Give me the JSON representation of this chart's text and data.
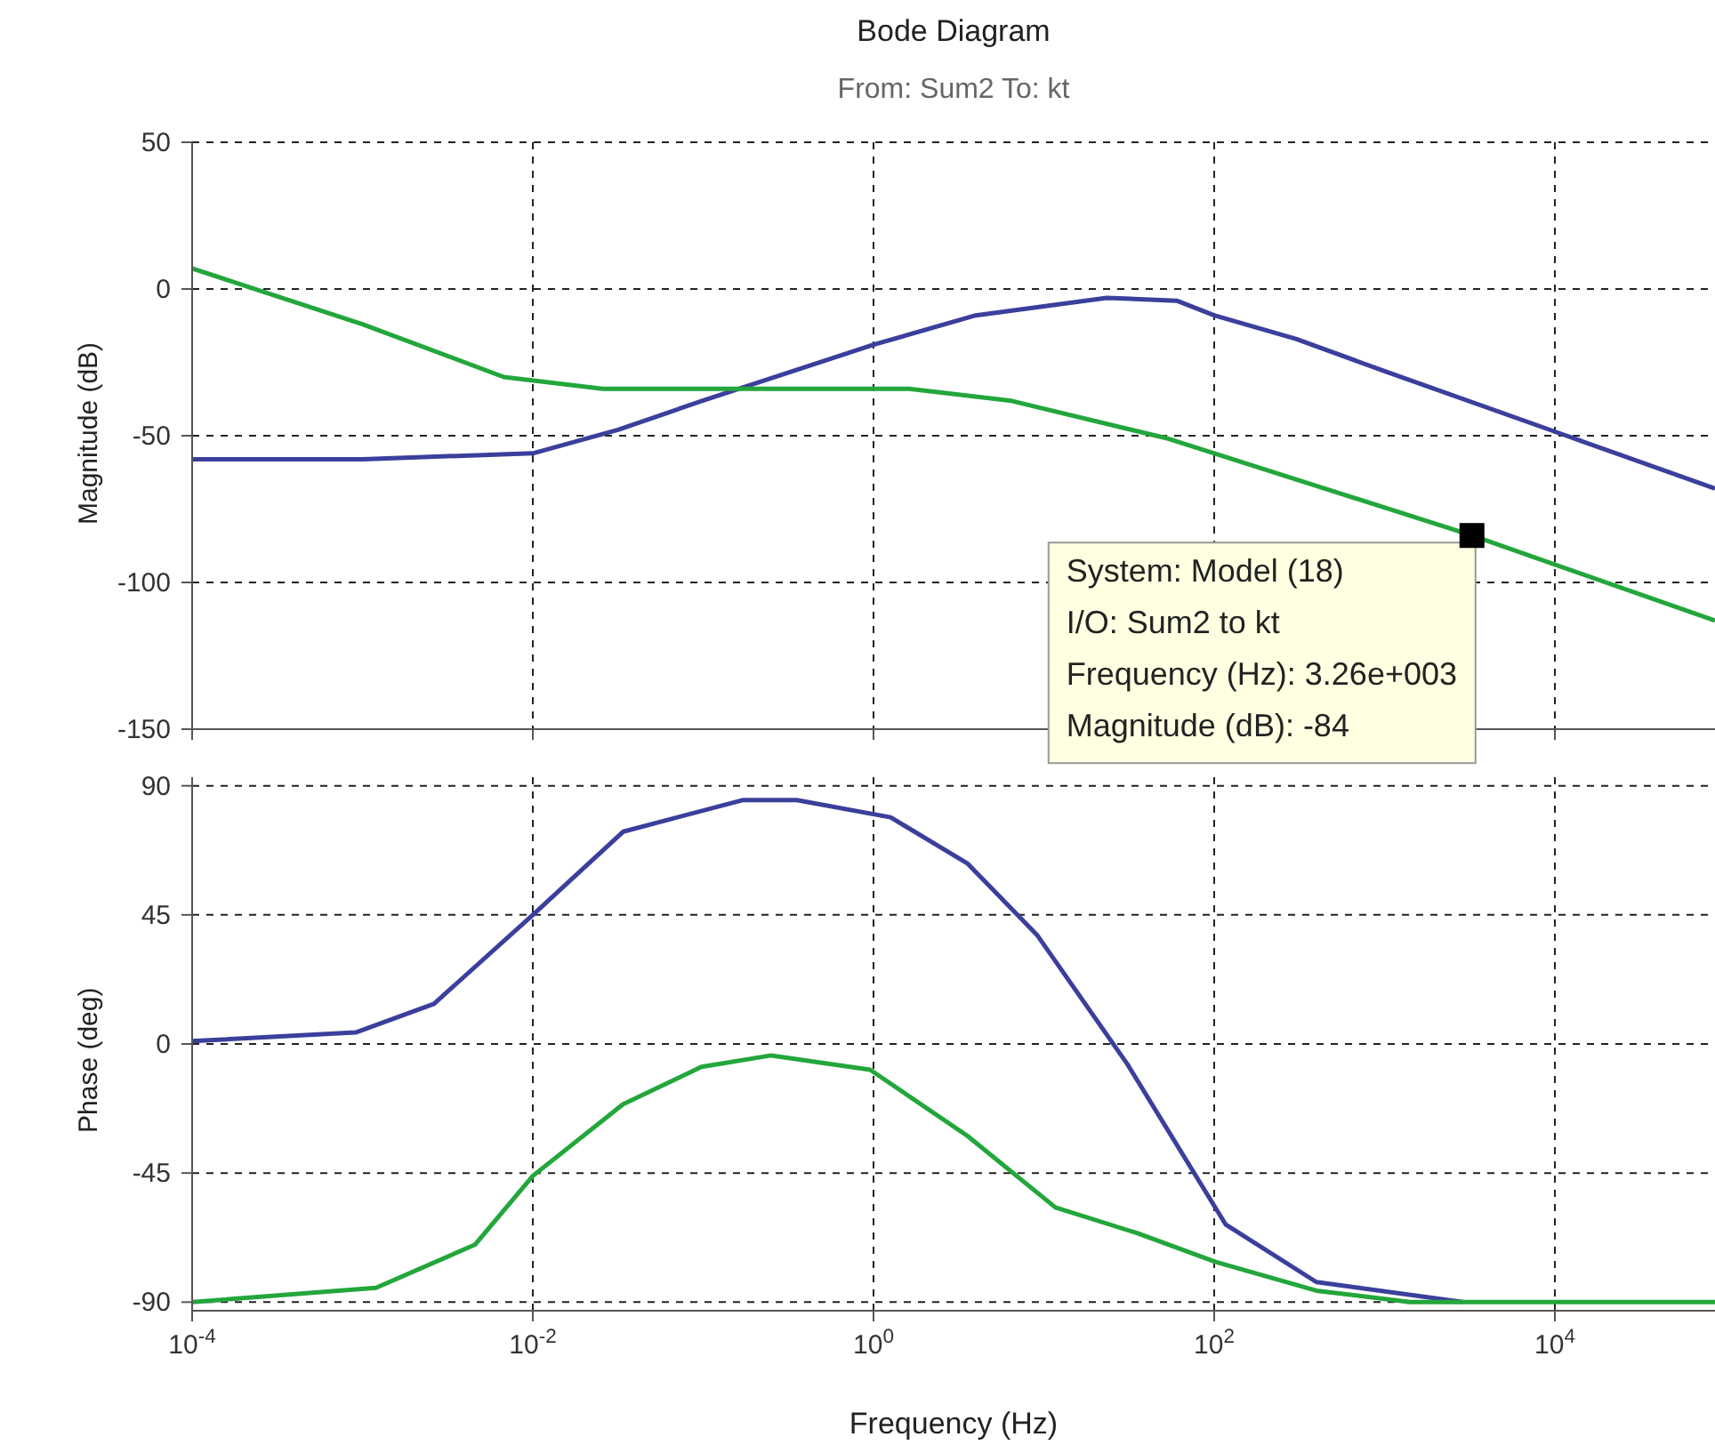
{
  "chart_data": [
    {
      "type": "line",
      "title": "Bode Diagram",
      "subtitle": "From: Sum2  To: kt",
      "ylabel": "Magnitude (dB)",
      "log": "x",
      "grid": true,
      "marker": "none",
      "line_style": "solid",
      "tick_labels": "y",
      "xlim": [
        0.0001,
        87100
      ],
      "xticks": [
        {
          "value": 0.0001,
          "label": null
        },
        {
          "value": 0.01,
          "label": null
        },
        {
          "value": 1,
          "label": null
        },
        {
          "value": 100,
          "label": null
        },
        {
          "value": 10000,
          "label": null
        }
      ],
      "ylim": [
        -150,
        50
      ],
      "yticks": [
        -150,
        -100,
        -50,
        0,
        50
      ],
      "annotations": [
        {
          "text": "System: Model (18)\nI/O: Sum2 to kt\nFrequency (Hz): 3.26e+003\nMagnitude (dB): -84",
          "x": 3260,
          "y": -84
        }
      ],
      "series": [
        {
          "color": "#3b3f9c",
          "x": [
            0.0001,
            0.001,
            0.01,
            0.0316,
            0.1,
            1,
            3.98,
            23.4,
            60.3,
            100,
            302,
            1000,
            11700,
            87100
          ],
          "values": [
            -58,
            -58,
            -56,
            -48,
            -38,
            -19,
            -9,
            -3,
            -4,
            -9,
            -17,
            -28,
            -50,
            -68
          ]
        },
        {
          "color": "#23a63b",
          "x": [
            0.0001,
            0.001,
            0.00676,
            0.0257,
            1.62,
            6.31,
            53.7,
            3260,
            87100
          ],
          "values": [
            7,
            -12,
            -30,
            -34,
            -34,
            -38,
            -51,
            -84,
            -113
          ]
        }
      ]
    },
    {
      "type": "line",
      "xlabel": "Frequency  (Hz)",
      "ylabel": "Phase (deg)",
      "log": "x",
      "grid": true,
      "marker": "none",
      "line_style": "solid",
      "xlim": [
        0.0001,
        87100
      ],
      "xticks": [
        {
          "value": 0.0001,
          "label": "10$^{-4}$"
        },
        {
          "value": 0.01,
          "label": "10$^{-2}$"
        },
        {
          "value": 1,
          "label": "10$^{0}$"
        },
        {
          "value": 100,
          "label": "10$^{2}$"
        },
        {
          "value": 10000,
          "label": "10$^{4}$"
        }
      ],
      "ylim": [
        -93,
        93
      ],
      "yticks": [
        -90,
        -45,
        0,
        45,
        90
      ],
      "series": [
        {
          "color": "#3b3f9c",
          "x": [
            0.0001,
            0.000912,
            0.00263,
            0.01,
            0.0339,
            0.17,
            0.355,
            1.26,
            3.55,
            9.12,
            30.9,
            117,
            398,
            2880
          ],
          "values": [
            1,
            4,
            14,
            45,
            74,
            85,
            85,
            79,
            63,
            38,
            -7,
            -63,
            -83,
            -90
          ]
        },
        {
          "color": "#23a63b",
          "x": [
            0.0001,
            0.0012,
            0.00457,
            0.01,
            0.0339,
            0.0977,
            0.251,
            0.955,
            3.55,
            11.7,
            35.5,
            102,
            398,
            1410,
            87100
          ],
          "values": [
            -90,
            -85,
            -70,
            -46,
            -21,
            -8,
            -4,
            -9,
            -32,
            -57,
            -66,
            -76,
            -86,
            -90,
            -90
          ]
        }
      ]
    }
  ]
}
